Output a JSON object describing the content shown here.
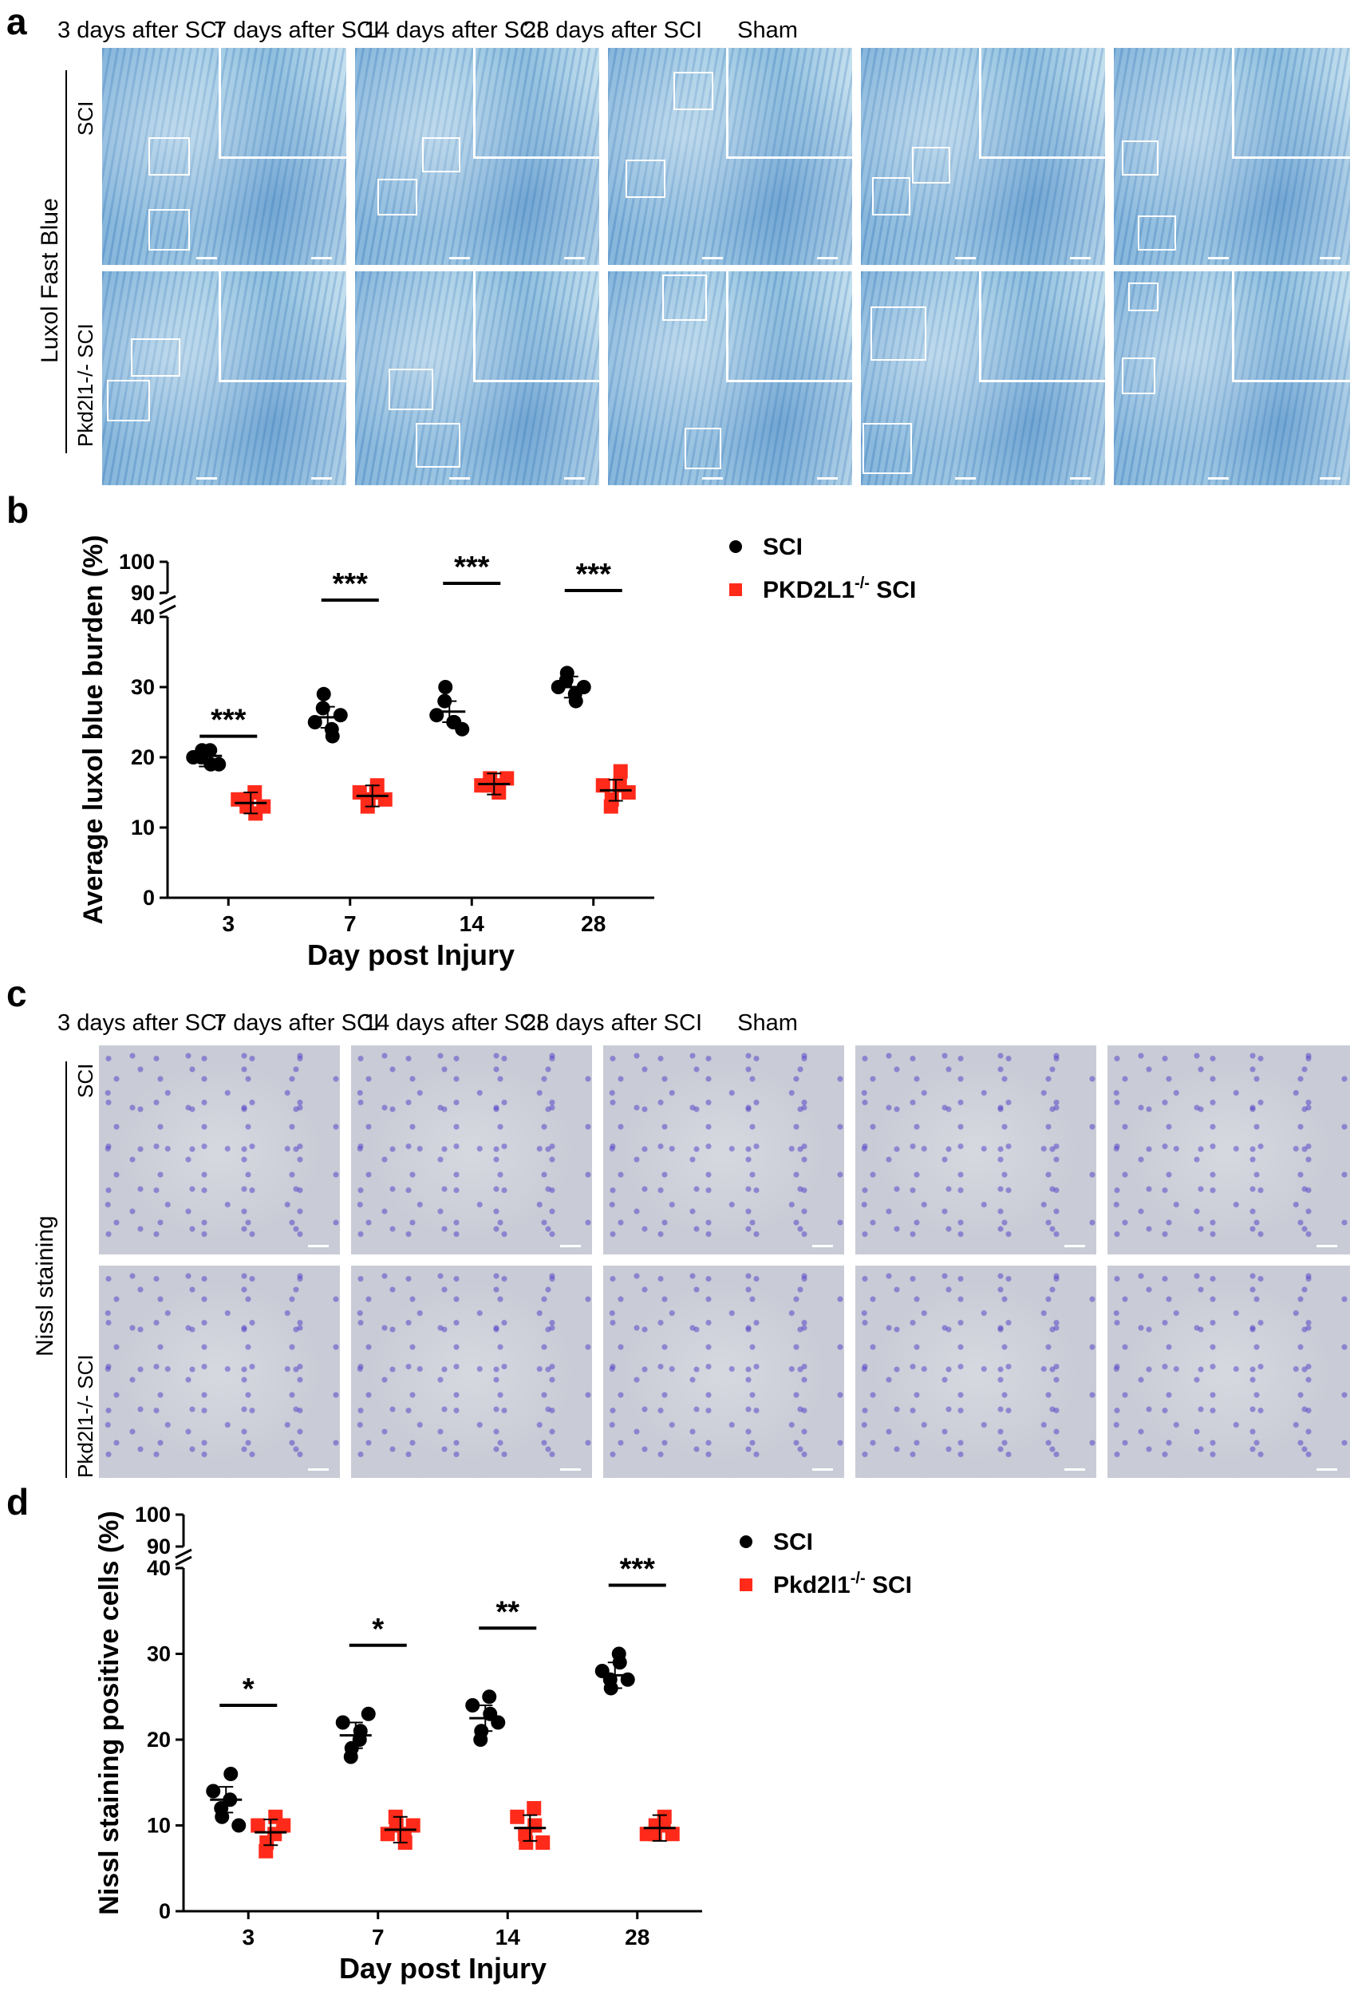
{
  "panel_a": {
    "letter": "a",
    "columns": [
      "3 days after SCI",
      "7 days after SCI",
      "14 days after SCI",
      "28 days after SCI",
      "Sham"
    ],
    "stain_label": "Luxol Fast Blue",
    "row_labels": [
      "SCI",
      "Pkd2l1-/-  SCI"
    ]
  },
  "panel_b": {
    "letter": "b"
  },
  "panel_c": {
    "letter": "c",
    "columns": [
      "3 days after SCI",
      "7 days after SCI",
      "14 days after SCI",
      "28 days after SCI",
      "Sham"
    ],
    "stain_label": "Nissl staining",
    "row_labels": [
      "SCI",
      "Pkd2l1-/-  SCI"
    ]
  },
  "panel_d": {
    "letter": "d"
  },
  "chart_data": [
    {
      "type": "scatter",
      "panel": "b",
      "xlabel": "Day post Injury",
      "ylabel": "Average luxol blue burden (%)",
      "categories": [
        "3",
        "7",
        "14",
        "28"
      ],
      "ylim_lower": [
        0,
        40
      ],
      "ylim_upper": [
        90,
        100
      ],
      "yticks_lower": [
        0,
        10,
        20,
        30,
        40
      ],
      "yticks_upper": [
        90,
        100
      ],
      "legend": {
        "placement": "top-right"
      },
      "series": [
        {
          "name": "SCI",
          "color": "#000000",
          "marker": "circle",
          "points": [
            [
              20,
              21,
              19,
              20,
              21,
              19
            ],
            [
              25,
              29,
              23,
              27,
              24,
              26
            ],
            [
              26,
              30,
              25,
              28,
              25,
              24
            ],
            [
              30,
              32,
              28,
              31,
              29,
              30
            ]
          ],
          "mean": [
            20.2,
            25.7,
            26.5,
            30.0
          ]
        },
        {
          "name": "PKD2L1⁻/⁻ SCI",
          "name_base": "PKD2L1",
          "name_sup": "-/-",
          "name_tail": " SCI",
          "color": "#ff2a1a",
          "marker": "square",
          "points": [
            [
              14,
              13,
              12,
              14,
              15,
              13
            ],
            [
              15,
              14,
              16,
              13,
              15,
              14
            ],
            [
              16,
              17,
              15,
              16,
              16,
              17
            ],
            [
              16,
              14,
              18,
              13,
              16,
              15
            ]
          ],
          "mean": [
            13.5,
            14.5,
            16.2,
            15.3
          ]
        }
      ],
      "significance": [
        "***",
        "***",
        "***",
        "***"
      ],
      "sig_level": [
        23,
        41,
        48,
        45
      ]
    },
    {
      "type": "scatter",
      "panel": "d",
      "xlabel": "Day post Injury",
      "ylabel": "Nissl staining positive cells (%)",
      "categories": [
        "3",
        "7",
        "14",
        "28"
      ],
      "ylim_lower": [
        0,
        40
      ],
      "ylim_upper": [
        90,
        100
      ],
      "yticks_lower": [
        0,
        10,
        20,
        30,
        40
      ],
      "yticks_upper": [
        90,
        100
      ],
      "legend": {
        "placement": "top-right"
      },
      "series": [
        {
          "name": "SCI",
          "color": "#000000",
          "marker": "circle",
          "points": [
            [
              14,
              11,
              16,
              12,
              13,
              10
            ],
            [
              22,
              19,
              21,
              18,
              20,
              23
            ],
            [
              24,
              21,
              23,
              20,
              25,
              22
            ],
            [
              28,
              26,
              29,
              27,
              30,
              27
            ]
          ],
          "mean": [
            13.0,
            20.5,
            22.5,
            27.5
          ]
        },
        {
          "name": "Pkd2l1⁻/⁻ SCI",
          "name_base": "Pkd2l1",
          "name_sup": "-/-",
          "name_tail": " SCI",
          "color": "#ff2a1a",
          "marker": "square",
          "points": [
            [
              10,
              8,
              11,
              7,
              9,
              10
            ],
            [
              9,
              10,
              8,
              11,
              9,
              10
            ],
            [
              11,
              8,
              10,
              9,
              12,
              8
            ],
            [
              9,
              10,
              11,
              9,
              10,
              9
            ]
          ],
          "mean": [
            9.2,
            9.5,
            9.7,
            9.7
          ]
        }
      ],
      "significance": [
        "*",
        "*",
        "**",
        "***"
      ],
      "sig_level": [
        24,
        31,
        33,
        38
      ]
    }
  ]
}
